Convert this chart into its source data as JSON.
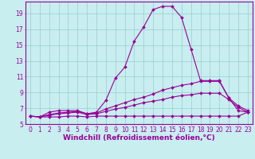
{
  "xlabel": "Windchill (Refroidissement éolien,°C)",
  "background_color": "#c8eef0",
  "line_color": "#990099",
  "grid_color": "#99cccc",
  "xlim": [
    -0.5,
    23.5
  ],
  "ylim": [
    5,
    20.5
  ],
  "yticks": [
    5,
    7,
    9,
    11,
    13,
    15,
    17,
    19
  ],
  "xticks": [
    0,
    1,
    2,
    3,
    4,
    5,
    6,
    7,
    8,
    9,
    10,
    11,
    12,
    13,
    14,
    15,
    16,
    17,
    18,
    19,
    20,
    21,
    22,
    23
  ],
  "series": [
    {
      "x": [
        0,
        1,
        2,
        3,
        4,
        5,
        6,
        7,
        8,
        9,
        10,
        11,
        12,
        13,
        14,
        15,
        16,
        17,
        18,
        19,
        20,
        21,
        22,
        23
      ],
      "y": [
        6.0,
        5.9,
        6.5,
        6.7,
        6.7,
        6.7,
        6.3,
        6.5,
        8.0,
        10.8,
        12.2,
        15.5,
        17.3,
        19.5,
        19.9,
        19.9,
        18.5,
        14.5,
        10.5,
        10.5,
        10.5,
        8.3,
        6.7,
        6.5
      ]
    },
    {
      "x": [
        0,
        1,
        2,
        3,
        4,
        5,
        6,
        7,
        8,
        9,
        10,
        11,
        12,
        13,
        14,
        15,
        16,
        17,
        18,
        19,
        20,
        21,
        22,
        23
      ],
      "y": [
        6.0,
        5.9,
        6.2,
        6.4,
        6.5,
        6.6,
        6.3,
        6.4,
        6.9,
        7.3,
        7.7,
        8.1,
        8.4,
        8.8,
        9.3,
        9.6,
        9.9,
        10.1,
        10.4,
        10.4,
        10.4,
        8.3,
        7.3,
        6.7
      ]
    },
    {
      "x": [
        0,
        1,
        2,
        3,
        4,
        5,
        6,
        7,
        8,
        9,
        10,
        11,
        12,
        13,
        14,
        15,
        16,
        17,
        18,
        19,
        20,
        21,
        22,
        23
      ],
      "y": [
        6.0,
        5.9,
        6.1,
        6.3,
        6.4,
        6.5,
        6.2,
        6.3,
        6.6,
        6.9,
        7.1,
        7.4,
        7.7,
        7.9,
        8.1,
        8.4,
        8.6,
        8.7,
        8.9,
        8.9,
        8.9,
        8.1,
        7.1,
        6.5
      ]
    },
    {
      "x": [
        0,
        1,
        2,
        3,
        4,
        5,
        6,
        7,
        8,
        9,
        10,
        11,
        12,
        13,
        14,
        15,
        16,
        17,
        18,
        19,
        20,
        21,
        22,
        23
      ],
      "y": [
        6.0,
        5.9,
        5.9,
        5.9,
        6.0,
        6.0,
        5.9,
        6.0,
        6.0,
        6.0,
        6.0,
        6.0,
        6.0,
        6.0,
        6.0,
        6.0,
        6.0,
        6.0,
        6.0,
        6.0,
        6.0,
        6.0,
        6.0,
        6.5
      ]
    }
  ],
  "title_fontsize": 6.5,
  "axis_fontsize": 6.5,
  "tick_fontsize": 5.5
}
